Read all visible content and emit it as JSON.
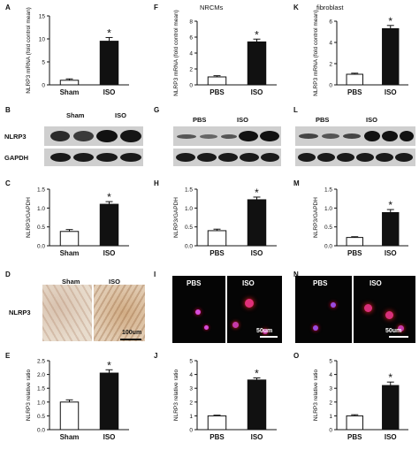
{
  "figure": {
    "panel_letters": [
      "A",
      "F",
      "K",
      "B",
      "G",
      "L",
      "C",
      "H",
      "M",
      "D",
      "I",
      "N",
      "E",
      "J",
      "O"
    ],
    "titles": {
      "F": "NRCMs",
      "K": "fibroblast"
    },
    "blots": {
      "B": {
        "col_labels": [
          "Sham",
          "ISO"
        ],
        "rows": [
          "NLRP3",
          "GAPDH"
        ]
      },
      "G": {
        "col_labels": [
          "PBS",
          "ISO"
        ],
        "rows": []
      },
      "L": {
        "col_labels": [
          "PBS",
          "ISO"
        ],
        "rows": []
      }
    },
    "images": {
      "D": {
        "row_label": "NLRP3",
        "labels": [
          "Sham",
          "ISO"
        ],
        "scale": "100um"
      },
      "I": {
        "labels": [
          "PBS",
          "ISO"
        ],
        "scale": "50um"
      },
      "N": {
        "labels": [
          "PBS",
          "ISO"
        ],
        "scale": "50um"
      }
    }
  },
  "chart_data": [
    {
      "panel": "A",
      "type": "bar",
      "categories": [
        "Sham",
        "ISO"
      ],
      "values": [
        1.0,
        9.5
      ],
      "errors": [
        0.3,
        0.8
      ],
      "ylabel": "NLRP3 mRNA (fold control mean)",
      "ylim": [
        0,
        15
      ],
      "yticks": [
        0,
        5,
        10,
        15
      ],
      "significance": "*"
    },
    {
      "panel": "F",
      "type": "bar",
      "categories": [
        "PBS",
        "ISO"
      ],
      "values": [
        1.0,
        5.4
      ],
      "errors": [
        0.15,
        0.35
      ],
      "ylabel": "NLRP3 mRNA (fold control mean)",
      "ylim": [
        0,
        8
      ],
      "yticks": [
        0,
        2,
        4,
        6,
        8
      ],
      "significance": "*"
    },
    {
      "panel": "K",
      "type": "bar",
      "categories": [
        "PBS",
        "ISO"
      ],
      "values": [
        1.0,
        5.3
      ],
      "errors": [
        0.1,
        0.3
      ],
      "ylabel": "NLRP3 mRNA (fold control mean)",
      "ylim": [
        0,
        6
      ],
      "yticks": [
        0,
        2,
        4,
        6
      ],
      "significance": "*"
    },
    {
      "panel": "C",
      "type": "bar",
      "categories": [
        "Sham",
        "ISO"
      ],
      "values": [
        0.38,
        1.1
      ],
      "errors": [
        0.05,
        0.07
      ],
      "ylabel": "NLRP3/GAPDH",
      "ylim": [
        0,
        1.5
      ],
      "yticks": [
        0.0,
        0.5,
        1.0,
        1.5
      ],
      "significance": "*"
    },
    {
      "panel": "H",
      "type": "bar",
      "categories": [
        "PBS",
        "ISO"
      ],
      "values": [
        0.4,
        1.22
      ],
      "errors": [
        0.04,
        0.07
      ],
      "ylabel": "NLRP3/GAPDH",
      "ylim": [
        0,
        1.5
      ],
      "yticks": [
        0.0,
        0.5,
        1.0,
        1.5
      ],
      "significance": "*"
    },
    {
      "panel": "M",
      "type": "bar",
      "categories": [
        "PBS",
        "ISO"
      ],
      "values": [
        0.22,
        0.88
      ],
      "errors": [
        0.02,
        0.08
      ],
      "ylabel": "NLRP3/GAPDH",
      "ylim": [
        0,
        1.5
      ],
      "yticks": [
        0.0,
        0.5,
        1.0,
        1.5
      ],
      "significance": "*"
    },
    {
      "panel": "E",
      "type": "bar",
      "categories": [
        "Sham",
        "ISO"
      ],
      "values": [
        1.0,
        2.05
      ],
      "errors": [
        0.08,
        0.12
      ],
      "ylabel": "NLRP3 relative ratio",
      "ylim": [
        0,
        2.5
      ],
      "yticks": [
        0.0,
        0.5,
        1.0,
        1.5,
        2.0,
        2.5
      ],
      "significance": "*"
    },
    {
      "panel": "J",
      "type": "bar",
      "categories": [
        "PBS",
        "ISO"
      ],
      "values": [
        1.0,
        3.6
      ],
      "errors": [
        0.05,
        0.15
      ],
      "ylabel": "NLRP3 relative ratio",
      "ylim": [
        0,
        5
      ],
      "yticks": [
        0,
        1,
        2,
        3,
        4,
        5
      ],
      "significance": "*"
    },
    {
      "panel": "O",
      "type": "bar",
      "categories": [
        "PBS",
        "ISO"
      ],
      "values": [
        1.0,
        3.2
      ],
      "errors": [
        0.08,
        0.25
      ],
      "ylabel": "NLRP3 relative ratio",
      "ylim": [
        0,
        5
      ],
      "yticks": [
        0,
        1,
        2,
        3,
        4,
        5
      ],
      "significance": "*"
    }
  ]
}
